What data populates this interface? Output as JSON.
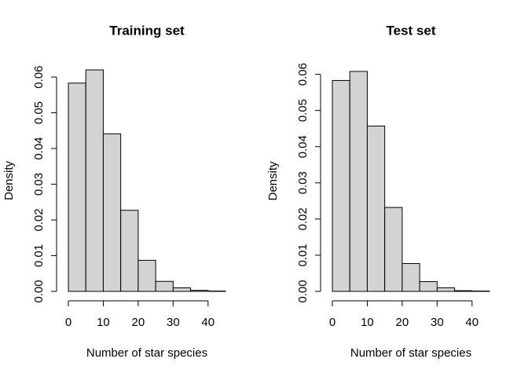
{
  "chart_data": [
    {
      "type": "histogram",
      "title": "Training set",
      "xlabel": "Number of star species",
      "ylabel": "Density",
      "bins": [
        0,
        5,
        10,
        15,
        20,
        25,
        30,
        35,
        40,
        45
      ],
      "values": [
        0.0583,
        0.062,
        0.0441,
        0.0227,
        0.0087,
        0.0028,
        0.001,
        0.0003,
        0.0001
      ],
      "color": "#d3d3d3",
      "xlim": [
        0,
        45
      ],
      "ylim": [
        0,
        0.062
      ],
      "xticks": [
        0,
        10,
        20,
        30,
        40
      ],
      "yticks": [
        {
          "value": 0,
          "label": "0.00"
        },
        0.01,
        0.02,
        0.03,
        0.04,
        0.05,
        0.06
      ]
    },
    {
      "type": "histogram",
      "title": "Test set",
      "xlabel": "Number of star species",
      "ylabel": "Density",
      "bins": [
        0,
        5,
        10,
        15,
        20,
        25,
        30,
        35,
        40,
        45
      ],
      "values": [
        0.0583,
        0.0608,
        0.0457,
        0.0232,
        0.0077,
        0.0027,
        0.001,
        0.0002,
        0.0001
      ],
      "color": "#d3d3d3",
      "xlim": [
        0,
        45
      ],
      "ylim": [
        0,
        0.061
      ],
      "xticks": [
        0,
        10,
        20,
        30,
        40
      ],
      "yticks": [
        {
          "value": 0,
          "label": "0.00"
        },
        0.01,
        0.02,
        0.03,
        0.04,
        0.05,
        0.06
      ]
    }
  ]
}
